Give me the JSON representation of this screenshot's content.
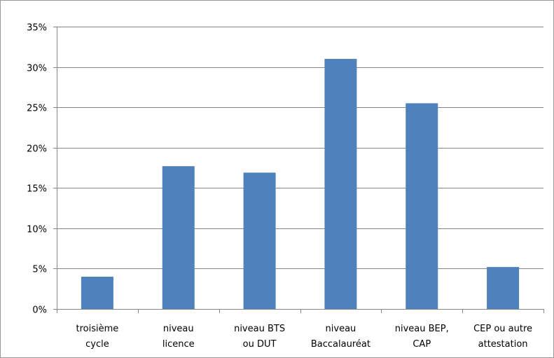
{
  "chart_data": {
    "type": "bar",
    "title": "",
    "xlabel": "",
    "ylabel": "",
    "ylim": [
      0,
      35
    ],
    "y_tick_values": [
      0,
      5,
      10,
      15,
      20,
      25,
      30,
      35
    ],
    "y_tick_labels": [
      "0%",
      "5%",
      "10%",
      "15%",
      "20%",
      "25%",
      "30%",
      "35%"
    ],
    "grid": true,
    "legend": "none",
    "categories": [
      [
        "troisième",
        "cycle"
      ],
      [
        "niveau",
        "licence"
      ],
      [
        "niveau BTS",
        "ou DUT"
      ],
      [
        "niveau",
        "Baccalauréat"
      ],
      [
        "niveau BEP,",
        "CAP"
      ],
      [
        "CEP ou autre",
        "attestation"
      ]
    ],
    "values": [
      4,
      17.7,
      16.9,
      31,
      25.5,
      5.2
    ],
    "unit": "%",
    "bar_color": "#4f81bd",
    "grid_color": "#868686",
    "axis_color": "#868686"
  }
}
